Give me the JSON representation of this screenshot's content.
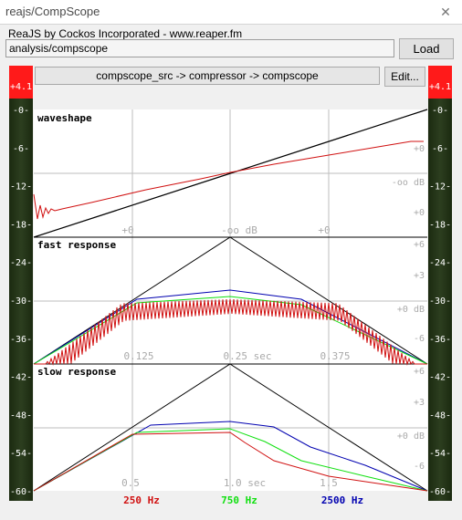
{
  "window": {
    "title": "reajs/CompScope",
    "close_glyph": "✕"
  },
  "plugin": {
    "title": "ReaJS by Cockos Incorporated - www.reaper.fm",
    "path": "analysis/compscope",
    "load_label": "Load",
    "chain": "compscope_src -> compressor -> compscope",
    "edit_label": "Edit..."
  },
  "meters": {
    "peak_left": "+4.1",
    "peak_right": "+4.1",
    "scale": [
      "-0-",
      "-6-",
      "-12-",
      "-18-",
      "-24-",
      "-30-",
      "-36-",
      "-42-",
      "-48-",
      "-54-",
      "-60-"
    ]
  },
  "panels": {
    "waveshape": {
      "title": "waveshape",
      "r1": "+0",
      "r2": "-oo dB",
      "r3": "+0",
      "x1": "+0",
      "x2": "-oo dB",
      "x3": "+0"
    },
    "fast": {
      "title": "fast response",
      "r1": "+6",
      "r2": "+3",
      "r3": "+0 dB",
      "r4": "-6",
      "x1": "0.125",
      "x2": "0.25 sec",
      "x3": "0.375"
    },
    "slow": {
      "title": "slow response",
      "r1": "+6",
      "r2": "+3",
      "r3": "+0 dB",
      "r4": "-6",
      "x1": "0.5",
      "x2": "1.0 sec",
      "x3": "1.5"
    }
  },
  "legend": [
    {
      "label": "250 Hz",
      "color": "#d01010"
    },
    {
      "label": "750 Hz",
      "color": "#10e010"
    },
    {
      "label": "2500 Hz",
      "color": "#0000b0"
    }
  ]
}
